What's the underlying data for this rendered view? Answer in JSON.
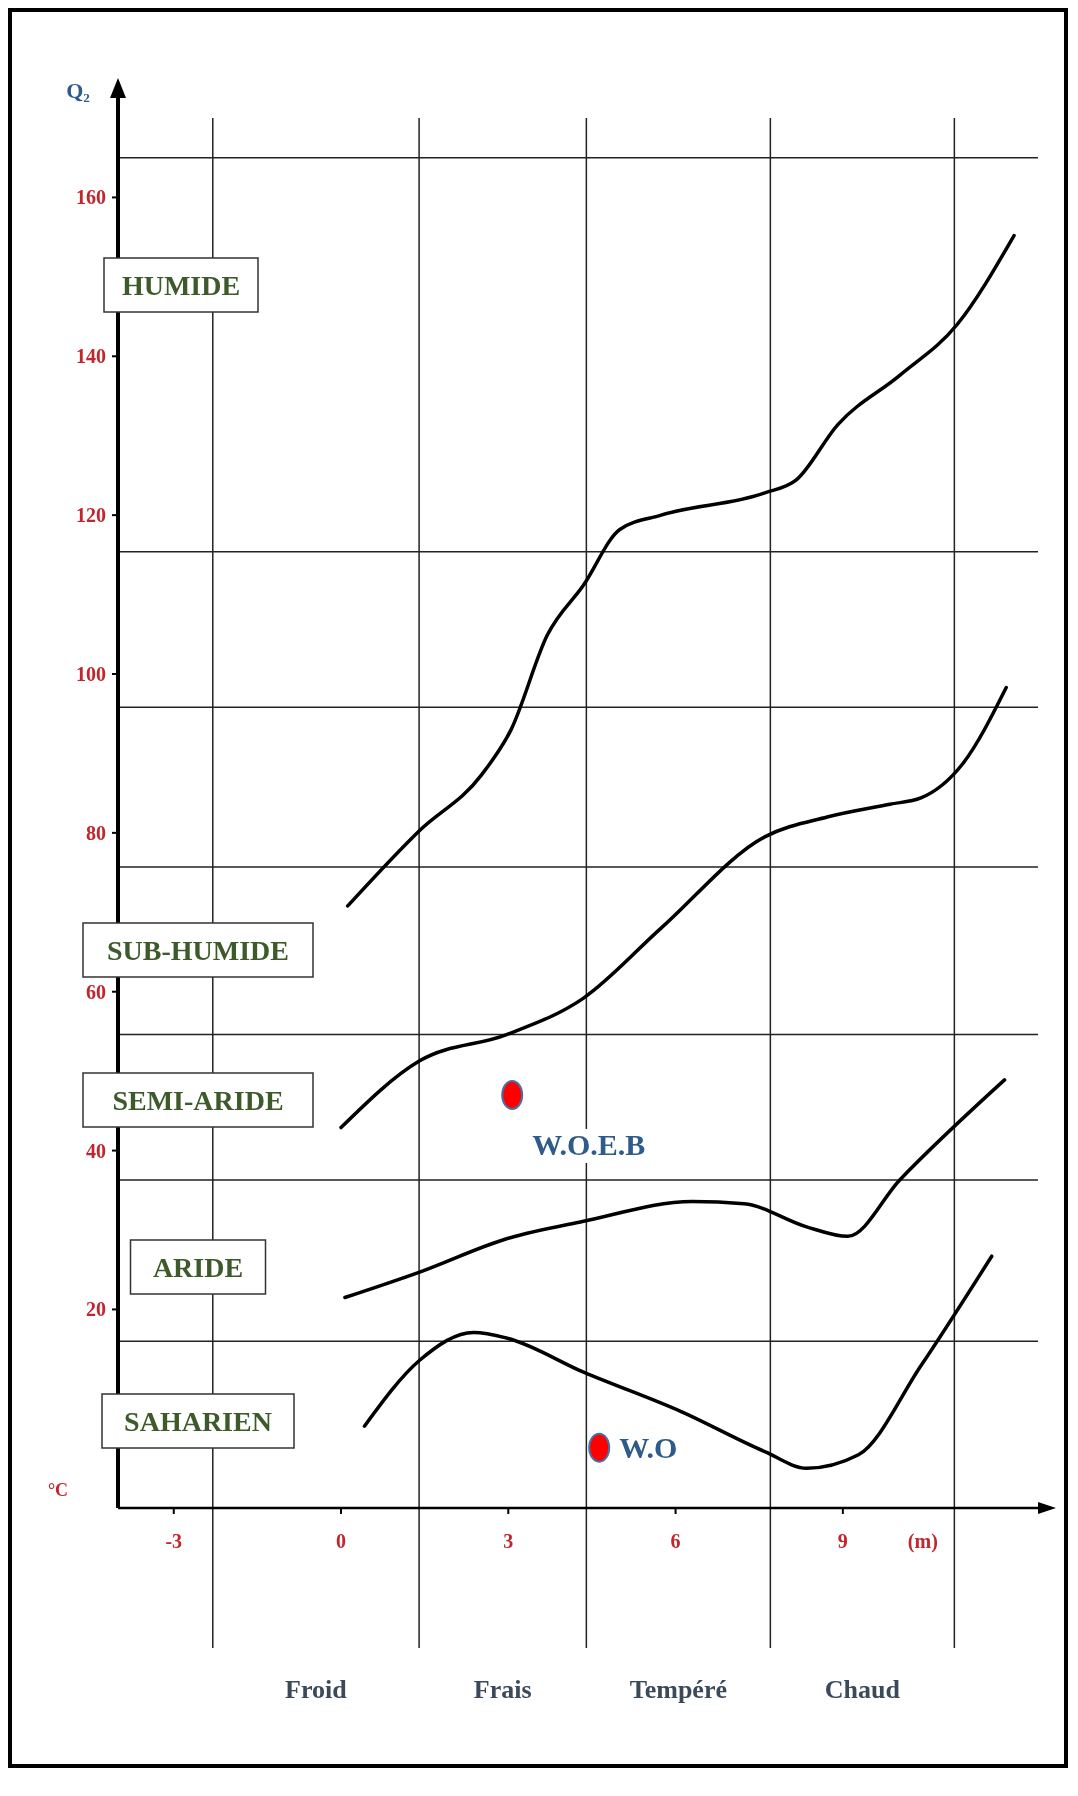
{
  "chart_data": {
    "type": "line",
    "ylabel": "Q₂",
    "xlabel": "(m)",
    "xlim": [
      -4,
      12.5
    ],
    "ylim": [
      -5,
      170
    ],
    "xticks": [
      -3,
      0,
      3,
      6,
      9
    ],
    "yticks": [
      20,
      40,
      60,
      80,
      100,
      120,
      140,
      160
    ],
    "grid": false,
    "line_style": "solid",
    "series": [
      {
        "color": "#000000",
        "x": [
          0.12,
          1.41,
          2.52,
          3.05,
          3.7,
          4.35,
          5.0,
          5.74,
          7.6,
          8.16,
          8.91,
          10.02,
          11.05,
          12.07
        ],
        "values": [
          70.8,
          80.3,
          87.3,
          93,
          104.9,
          111.2,
          118.2,
          120,
          122.8,
          124.4,
          131.4,
          137.6,
          144,
          155.2
        ]
      },
      {
        "color": "#000000",
        "x": [
          0,
          1.41,
          2.97,
          4.35,
          5.74,
          7.6,
          8.72,
          9.84,
          10.4,
          11.15,
          11.93
        ],
        "values": [
          42.9,
          51.3,
          54.6,
          59.2,
          68,
          79.5,
          82,
          83.6,
          84.4,
          88.7,
          98.3
        ]
      },
      {
        "color": "#000000",
        "x": [
          0.07,
          1.41,
          2.97,
          4.35,
          6.3,
          7.23,
          8.35,
          9.09,
          10.02,
          11.9
        ],
        "values": [
          21.5,
          24.7,
          28.9,
          31.1,
          33.6,
          33.3,
          30.4,
          29.2,
          36.3,
          48.9
        ]
      },
      {
        "color": "#000000",
        "x": [
          0.42,
          1.41,
          2.38,
          2.97,
          4.35,
          6.11,
          7.6,
          8.35,
          9.28,
          10.4,
          11.67
        ],
        "values": [
          5.3,
          13.6,
          17.1,
          16.4,
          12.1,
          7.1,
          2.1,
          0,
          1.7,
          12.9,
          26.7
        ]
      },
      {
        "type": "scatter",
        "name": "W.O.E.B",
        "color": "#ff0000",
        "x": [
          3.07
        ],
        "values": [
          47
        ]
      },
      {
        "type": "scatter",
        "name": "W.O",
        "color": "#ff0000",
        "x": [
          4.63
        ],
        "values": [
          2.6
        ]
      }
    ],
    "ref_lines": [
      {
        "axis": "x",
        "value": -2.3
      },
      {
        "axis": "x",
        "value": 1.4
      },
      {
        "axis": "x",
        "value": 4.4
      },
      {
        "axis": "x",
        "value": 7.7
      },
      {
        "axis": "x",
        "value": 11
      },
      {
        "axis": "y",
        "value": 165
      },
      {
        "axis": "y",
        "value": 115.4
      },
      {
        "axis": "y",
        "value": 95.8
      },
      {
        "axis": "y",
        "value": 75.7
      },
      {
        "axis": "y",
        "value": 54.6
      },
      {
        "axis": "y",
        "value": 36.3
      },
      {
        "axis": "y",
        "value": 16
      }
    ],
    "annotations": [
      "HUMIDE",
      "SUB-HUMIDE",
      "SEMI-ARIDE",
      "ARIDE",
      "SAHARIEN",
      "°C",
      "Froid",
      "Frais",
      "Tempéré",
      "Chaud"
    ]
  }
}
